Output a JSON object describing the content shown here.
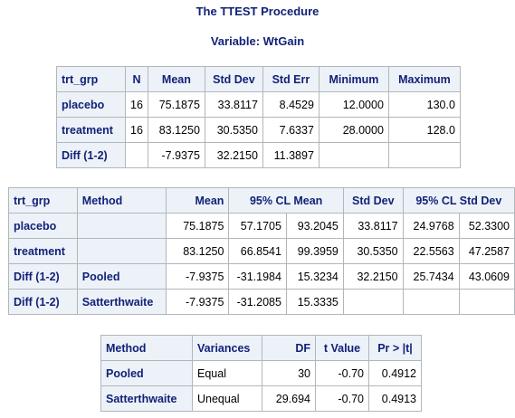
{
  "titles": {
    "procedure": "The TTEST Procedure",
    "variable": "Variable: WtGain"
  },
  "summary": {
    "headers": [
      "trt_grp",
      "N",
      "Mean",
      "Std Dev",
      "Std Err",
      "Minimum",
      "Maximum"
    ],
    "rows": [
      [
        "placebo",
        "16",
        "75.1875",
        "33.8117",
        "8.4529",
        "12.0000",
        "130.0"
      ],
      [
        "treatment",
        "16",
        "83.1250",
        "30.5350",
        "7.6337",
        "28.0000",
        "128.0"
      ],
      [
        "Diff (1-2)",
        "",
        "-7.9375",
        "32.2150",
        "11.3897",
        "",
        ""
      ]
    ]
  },
  "cl": {
    "headers": [
      "trt_grp",
      "Method",
      "Mean",
      "95% CL Mean",
      "Std Dev",
      "95% CL Std Dev"
    ],
    "rows": [
      [
        "placebo",
        "",
        "75.1875",
        "57.1705",
        "93.2045",
        "33.8117",
        "24.9768",
        "52.3300"
      ],
      [
        "treatment",
        "",
        "83.1250",
        "66.8541",
        "99.3959",
        "30.5350",
        "22.5563",
        "47.2587"
      ],
      [
        "Diff (1-2)",
        "Pooled",
        "-7.9375",
        "-31.1984",
        "15.3234",
        "32.2150",
        "25.7434",
        "43.0609"
      ],
      [
        "Diff (1-2)",
        "Satterthwaite",
        "-7.9375",
        "-31.2085",
        "15.3335",
        "",
        "",
        ""
      ]
    ]
  },
  "ttests": {
    "headers": [
      "Method",
      "Variances",
      "DF",
      "t Value",
      "Pr > |t|"
    ],
    "rows": [
      [
        "Pooled",
        "Equal",
        "30",
        "-0.70",
        "0.4912"
      ],
      [
        "Satterthwaite",
        "Unequal",
        "29.694",
        "-0.70",
        "0.4913"
      ]
    ]
  }
}
